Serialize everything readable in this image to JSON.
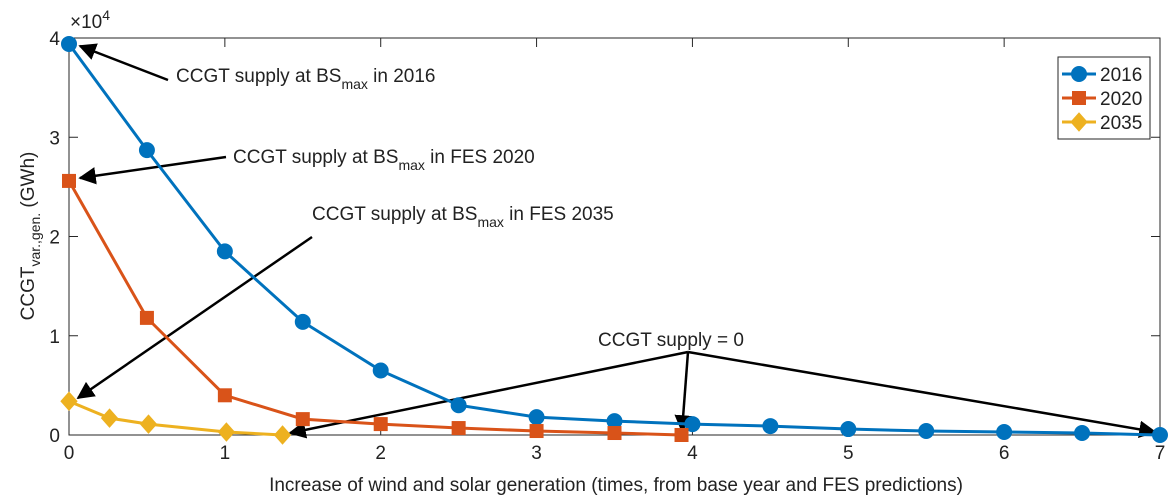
{
  "chart_data": {
    "type": "line",
    "xlabel": "Increase of wind and solar generation (times, from base year and FES predictions)",
    "ylabel": {
      "main": "CCGT",
      "sub": "var.,gen.",
      "after": " (GWh)"
    },
    "y_multiplier": {
      "base": "×10",
      "exponent": "4"
    },
    "xlim": [
      0,
      7
    ],
    "xticks": [
      0,
      1,
      2,
      3,
      4,
      5,
      6,
      7
    ],
    "ylim": [
      0,
      4
    ],
    "yticks": [
      0,
      1,
      2,
      3,
      4
    ],
    "grid": false,
    "legend": "upper right",
    "series": [
      {
        "name": "2016",
        "color": "#0072BD",
        "marker": "circle",
        "x": [
          0,
          0.5,
          1,
          1.5,
          2,
          2.5,
          3,
          3.5,
          4,
          4.5,
          5,
          5.5,
          6,
          6.5,
          7
        ],
        "values": [
          3.94,
          2.87,
          1.85,
          1.14,
          0.65,
          0.3,
          0.18,
          0.14,
          0.11,
          0.09,
          0.06,
          0.04,
          0.03,
          0.02,
          0
        ]
      },
      {
        "name": "2020",
        "color": "#D95319",
        "marker": "square",
        "x": [
          0,
          0.5,
          1,
          1.5,
          2,
          2.5,
          3,
          3.5,
          3.93
        ],
        "values": [
          2.56,
          1.18,
          0.4,
          0.16,
          0.11,
          0.07,
          0.04,
          0.02,
          0
        ]
      },
      {
        "name": "2035",
        "color": "#EDB120",
        "marker": "diamond",
        "x": [
          0,
          0.26,
          0.51,
          1.01,
          1.37
        ],
        "values": [
          0.34,
          0.17,
          0.11,
          0.03,
          0
        ]
      }
    ],
    "annotations": [
      {
        "text": "CCGT supply at BS",
        "sub": "max",
        "after": " in 2016"
      },
      {
        "text": "CCGT supply at BS",
        "sub": "max",
        "after": " in FES 2020"
      },
      {
        "text": "CCGT supply at BS",
        "sub": "max",
        "after": " in FES 2035"
      },
      {
        "text": "CCGT supply = 0"
      }
    ]
  }
}
